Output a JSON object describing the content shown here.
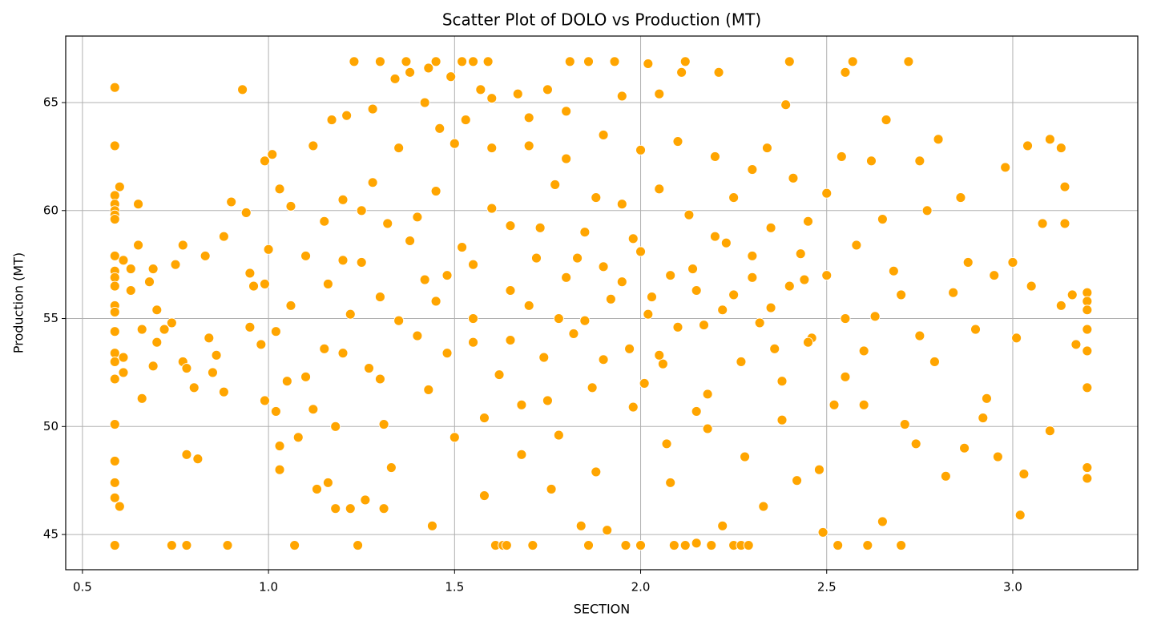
{
  "chart_data": {
    "type": "scatter",
    "title": "Scatter Plot of DOLO vs Production (MT)",
    "x_label": "SECTION",
    "y_label": "Production (MT)",
    "color": "#ffa500",
    "grid": true,
    "xlim": [
      0.455,
      3.336
    ],
    "ylim": [
      43.37,
      68.08
    ],
    "xticks": [
      0.5,
      {
        "value": 1,
        "label": "1.0"
      },
      1.5,
      {
        "value": 2,
        "label": "2.0"
      },
      2.5,
      {
        "value": 3,
        "label": "3.0"
      }
    ],
    "yticks": [
      45,
      50,
      55,
      60,
      65
    ],
    "x": [
      0.587,
      0.587,
      0.587,
      0.587,
      0.587,
      0.587,
      0.587,
      0.587,
      0.587,
      0.587,
      0.587,
      0.587,
      0.587,
      0.587,
      0.587,
      0.587,
      0.587,
      0.587,
      0.587,
      0.587,
      0.587,
      0.587,
      3.2,
      3.2,
      3.2,
      3.2,
      3.2,
      3.2,
      3.2,
      3.2,
      0.6,
      0.61,
      0.61,
      0.61,
      0.6,
      0.63,
      0.63,
      0.65,
      0.65,
      0.66,
      0.66,
      0.68,
      0.69,
      0.69,
      0.7,
      0.7,
      0.72,
      0.74,
      0.75,
      0.77,
      0.77,
      0.78,
      0.78,
      0.78,
      0.74,
      0.8,
      0.81,
      0.83,
      0.84,
      0.85,
      0.86,
      0.88,
      0.88,
      0.89,
      0.9,
      0.93,
      0.94,
      0.95,
      0.95,
      0.96,
      0.98,
      0.99,
      0.99,
      0.99,
      1.0,
      1.01,
      1.02,
      1.02,
      1.03,
      1.03,
      1.03,
      1.05,
      1.06,
      1.06,
      1.07,
      1.08,
      1.1,
      1.1,
      1.12,
      1.12,
      1.13,
      1.15,
      1.16,
      1.16,
      1.17,
      1.18,
      1.2,
      1.2,
      1.21,
      1.22,
      1.23,
      1.24,
      1.25,
      1.26,
      1.28,
      1.28,
      1.3,
      1.3,
      1.31,
      1.31,
      1.33,
      1.34,
      1.35,
      1.37,
      1.38,
      1.4,
      1.4,
      1.42,
      1.43,
      1.43,
      1.44,
      1.45,
      1.46,
      1.48,
      1.49,
      1.5,
      1.5,
      1.52,
      1.53,
      1.55,
      1.55,
      1.57,
      1.58,
      1.59,
      1.6,
      1.61,
      1.63,
      1.64,
      1.65,
      1.67,
      1.68,
      1.7,
      1.71,
      1.73,
      1.75,
      1.76,
      1.78,
      1.8,
      1.81,
      1.83,
      1.84,
      1.86,
      1.86,
      1.88,
      1.9,
      1.91,
      1.93,
      1.95,
      1.96,
      1.98,
      2.0,
      2.01,
      2.02,
      2.03,
      2.05,
      2.07,
      2.09,
      2.11,
      2.12,
      2.12,
      2.14,
      2.15,
      2.17,
      2.19,
      2.21,
      2.22,
      2.23,
      2.25,
      2.27,
      2.29,
      2.3,
      2.33,
      2.34,
      2.36,
      2.39,
      2.4,
      2.41,
      2.42,
      2.44,
      2.46,
      2.48,
      2.49,
      2.5,
      2.52,
      2.53,
      2.54,
      2.55,
      2.57,
      2.58,
      2.6,
      2.61,
      2.62,
      2.63,
      2.65,
      2.66,
      2.68,
      2.7,
      2.71,
      2.72,
      2.74,
      2.75,
      2.77,
      2.79,
      2.8,
      2.82,
      2.84,
      2.86,
      2.87,
      2.88,
      2.9,
      2.92,
      2.93,
      2.95,
      2.96,
      2.98,
      3.0,
      3.01,
      3.02,
      3.03,
      3.04,
      3.05,
      3.08,
      3.1,
      3.1,
      3.13,
      3.13,
      3.14,
      3.14,
      3.16,
      3.17,
      1.52,
      1.55,
      1.6,
      1.62,
      1.65,
      1.7,
      1.72,
      1.74,
      1.77,
      1.8,
      1.82,
      1.85,
      1.87,
      1.9,
      1.92,
      1.95,
      1.97,
      2.0,
      2.02,
      2.05,
      2.06,
      2.08,
      2.1,
      2.13,
      2.15,
      2.18,
      2.2,
      2.22,
      2.25,
      2.27,
      2.3,
      2.32,
      2.35,
      2.38,
      2.4,
      2.43,
      2.45,
      1.45,
      1.48,
      1.42,
      1.38,
      1.35,
      1.32,
      1.3,
      1.27,
      1.25,
      1.22,
      1.2,
      1.18,
      1.15,
      1.58,
      1.68,
      1.78,
      1.88,
      1.98,
      2.08,
      2.18,
      2.28,
      2.38,
      1.6,
      1.7,
      1.8,
      1.9,
      2.0,
      2.1,
      2.2,
      2.3,
      2.5,
      2.55,
      2.6,
      2.65,
      2.7,
      2.75,
      1.75,
      1.85,
      1.95,
      2.05,
      2.15,
      2.25,
      2.35,
      1.65,
      1.55,
      1.45,
      2.45,
      2.55
    ],
    "values": [
      65.7,
      63.0,
      60.7,
      60.3,
      60.0,
      59.8,
      59.6,
      57.9,
      57.2,
      56.9,
      56.5,
      55.6,
      55.3,
      54.4,
      53.4,
      53.0,
      52.2,
      50.1,
      48.4,
      47.4,
      46.7,
      44.5,
      56.2,
      55.8,
      55.4,
      54.5,
      53.5,
      51.8,
      48.1,
      47.6,
      61.1,
      57.7,
      53.2,
      52.5,
      46.3,
      57.3,
      56.3,
      60.3,
      58.4,
      54.5,
      51.3,
      56.7,
      57.3,
      52.8,
      55.4,
      53.9,
      54.5,
      54.8,
      57.5,
      58.4,
      53.0,
      52.7,
      48.7,
      44.5,
      44.5,
      51.8,
      48.5,
      57.9,
      54.1,
      52.5,
      53.3,
      58.8,
      51.6,
      44.5,
      60.4,
      65.6,
      59.9,
      57.1,
      54.6,
      56.5,
      53.8,
      62.3,
      56.6,
      51.2,
      58.2,
      62.6,
      54.4,
      50.7,
      61.0,
      49.1,
      48.0,
      52.1,
      60.2,
      55.6,
      44.5,
      49.5,
      57.9,
      52.3,
      63.0,
      50.8,
      47.1,
      59.5,
      56.6,
      47.4,
      64.2,
      46.2,
      60.5,
      53.4,
      64.4,
      46.2,
      66.9,
      44.5,
      57.6,
      46.6,
      64.7,
      61.3,
      66.9,
      52.2,
      50.1,
      46.2,
      48.1,
      66.1,
      62.9,
      66.9,
      66.4,
      59.7,
      54.2,
      65.0,
      66.6,
      51.7,
      45.4,
      66.9,
      63.8,
      57.0,
      66.2,
      63.1,
      49.5,
      66.9,
      64.2,
      66.9,
      53.9,
      65.6,
      46.8,
      66.9,
      65.2,
      44.5,
      44.5,
      44.5,
      56.3,
      65.4,
      51.0,
      64.3,
      44.5,
      59.2,
      65.6,
      47.1,
      55.0,
      64.6,
      66.9,
      57.8,
      45.4,
      66.9,
      44.5,
      60.6,
      53.1,
      45.2,
      66.9,
      65.3,
      44.5,
      58.7,
      44.5,
      52.0,
      66.8,
      56.0,
      65.4,
      49.2,
      44.5,
      66.4,
      66.9,
      44.5,
      57.3,
      44.6,
      54.7,
      44.5,
      66.4,
      45.4,
      58.5,
      44.5,
      44.5,
      44.5,
      56.9,
      46.3,
      62.9,
      53.6,
      64.9,
      66.9,
      61.5,
      47.5,
      56.8,
      54.1,
      48.0,
      45.1,
      60.8,
      51.0,
      44.5,
      62.5,
      66.4,
      66.9,
      58.4,
      51.0,
      44.5,
      62.3,
      55.1,
      45.6,
      64.2,
      57.2,
      44.5,
      50.1,
      66.9,
      49.2,
      62.3,
      60.0,
      53.0,
      63.3,
      47.7,
      56.2,
      60.6,
      49.0,
      57.6,
      54.5,
      50.4,
      51.3,
      57.0,
      48.6,
      62.0,
      57.6,
      54.1,
      45.9,
      47.8,
      63.0,
      56.5,
      59.4,
      63.3,
      49.8,
      62.9,
      55.6,
      61.1,
      59.4,
      56.1,
      53.8,
      58.3,
      55.0,
      60.1,
      52.4,
      59.3,
      55.6,
      57.8,
      53.2,
      61.2,
      56.9,
      54.3,
      59.0,
      51.8,
      57.4,
      55.9,
      60.3,
      53.6,
      58.1,
      55.2,
      61.0,
      52.9,
      57.0,
      54.6,
      59.8,
      56.3,
      51.5,
      58.8,
      55.4,
      60.6,
      53.0,
      57.9,
      54.8,
      59.2,
      52.1,
      56.5,
      58.0,
      53.9,
      60.9,
      53.4,
      56.8,
      58.6,
      54.9,
      59.4,
      56.0,
      52.7,
      60.0,
      55.2,
      57.7,
      50.0,
      53.6,
      50.4,
      48.7,
      49.6,
      47.9,
      50.9,
      47.4,
      49.9,
      48.6,
      50.3,
      62.9,
      63.0,
      62.4,
      63.5,
      62.8,
      63.2,
      62.5,
      61.9,
      57.0,
      55.0,
      53.5,
      59.6,
      56.1,
      54.2,
      51.2,
      54.9,
      56.7,
      53.3,
      50.7,
      56.1,
      55.5,
      54.0,
      57.5,
      55.8,
      59.5,
      52.3
    ]
  }
}
